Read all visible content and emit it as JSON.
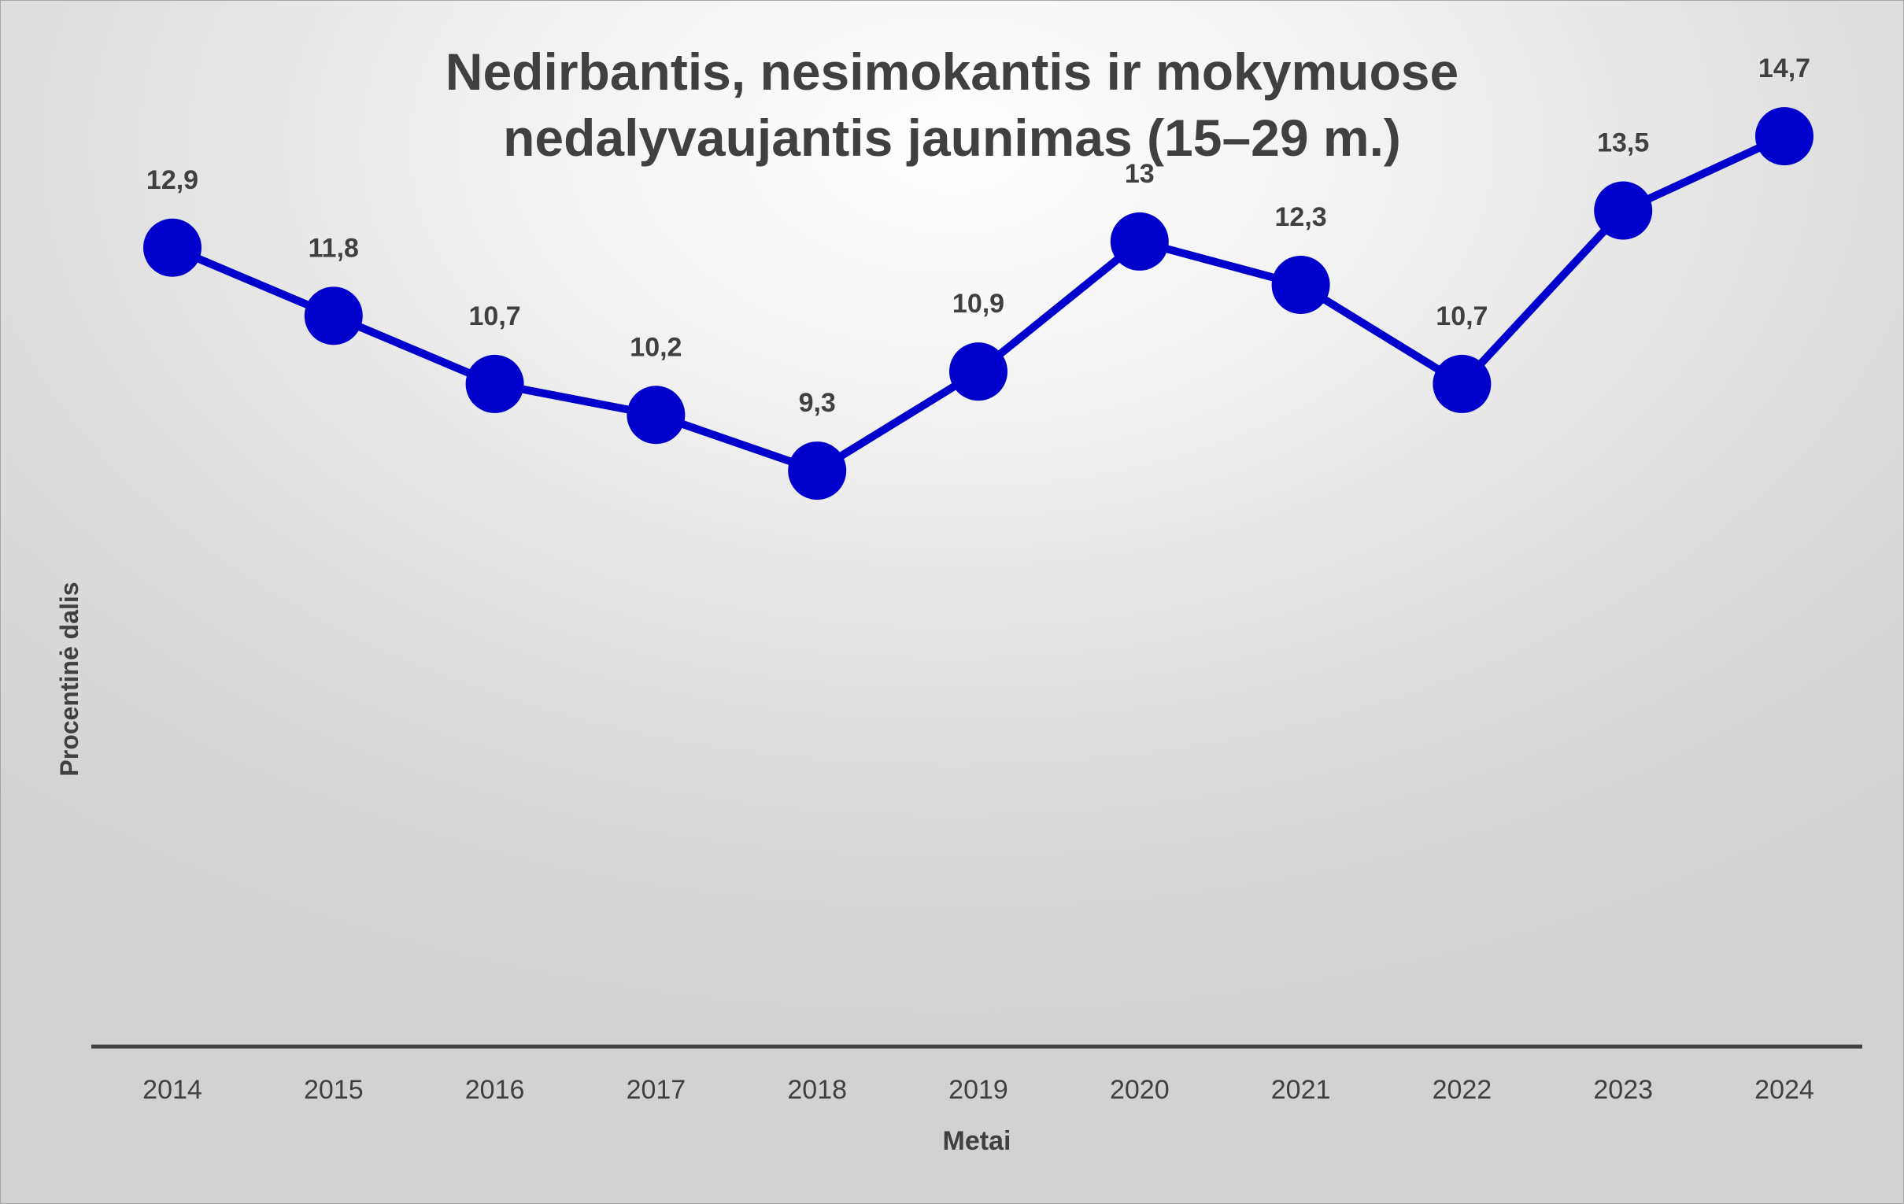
{
  "chart_data": {
    "type": "line",
    "title_lines": [
      "Nedirbantis, nesimokantis ir mokymuose",
      "nedalyvaujantis jaunimas (15–29 m.)"
    ],
    "xlabel": "Metai",
    "ylabel": "Procentinė dalis",
    "categories": [
      "2014",
      "2015",
      "2016",
      "2017",
      "2018",
      "2019",
      "2020",
      "2021",
      "2022",
      "2023",
      "2024"
    ],
    "series": [
      {
        "values": [
          12.9,
          11.8,
          10.7,
          10.2,
          9.3,
          10.9,
          13.0,
          12.3,
          10.7,
          13.5,
          14.7
        ],
        "labels": [
          "12,9",
          "11,8",
          "10,7",
          "10,2",
          "9,3",
          "10,9",
          "13",
          "12,3",
          "10,7",
          "13,5",
          "14,7"
        ],
        "color": "#0000cc"
      }
    ],
    "ylim": [
      0,
      16.5
    ],
    "grid": false,
    "legend": "none",
    "y_axis_visible": false
  },
  "colors": {
    "series": "#0000cc",
    "text": "#404040",
    "axis": "#404040"
  }
}
